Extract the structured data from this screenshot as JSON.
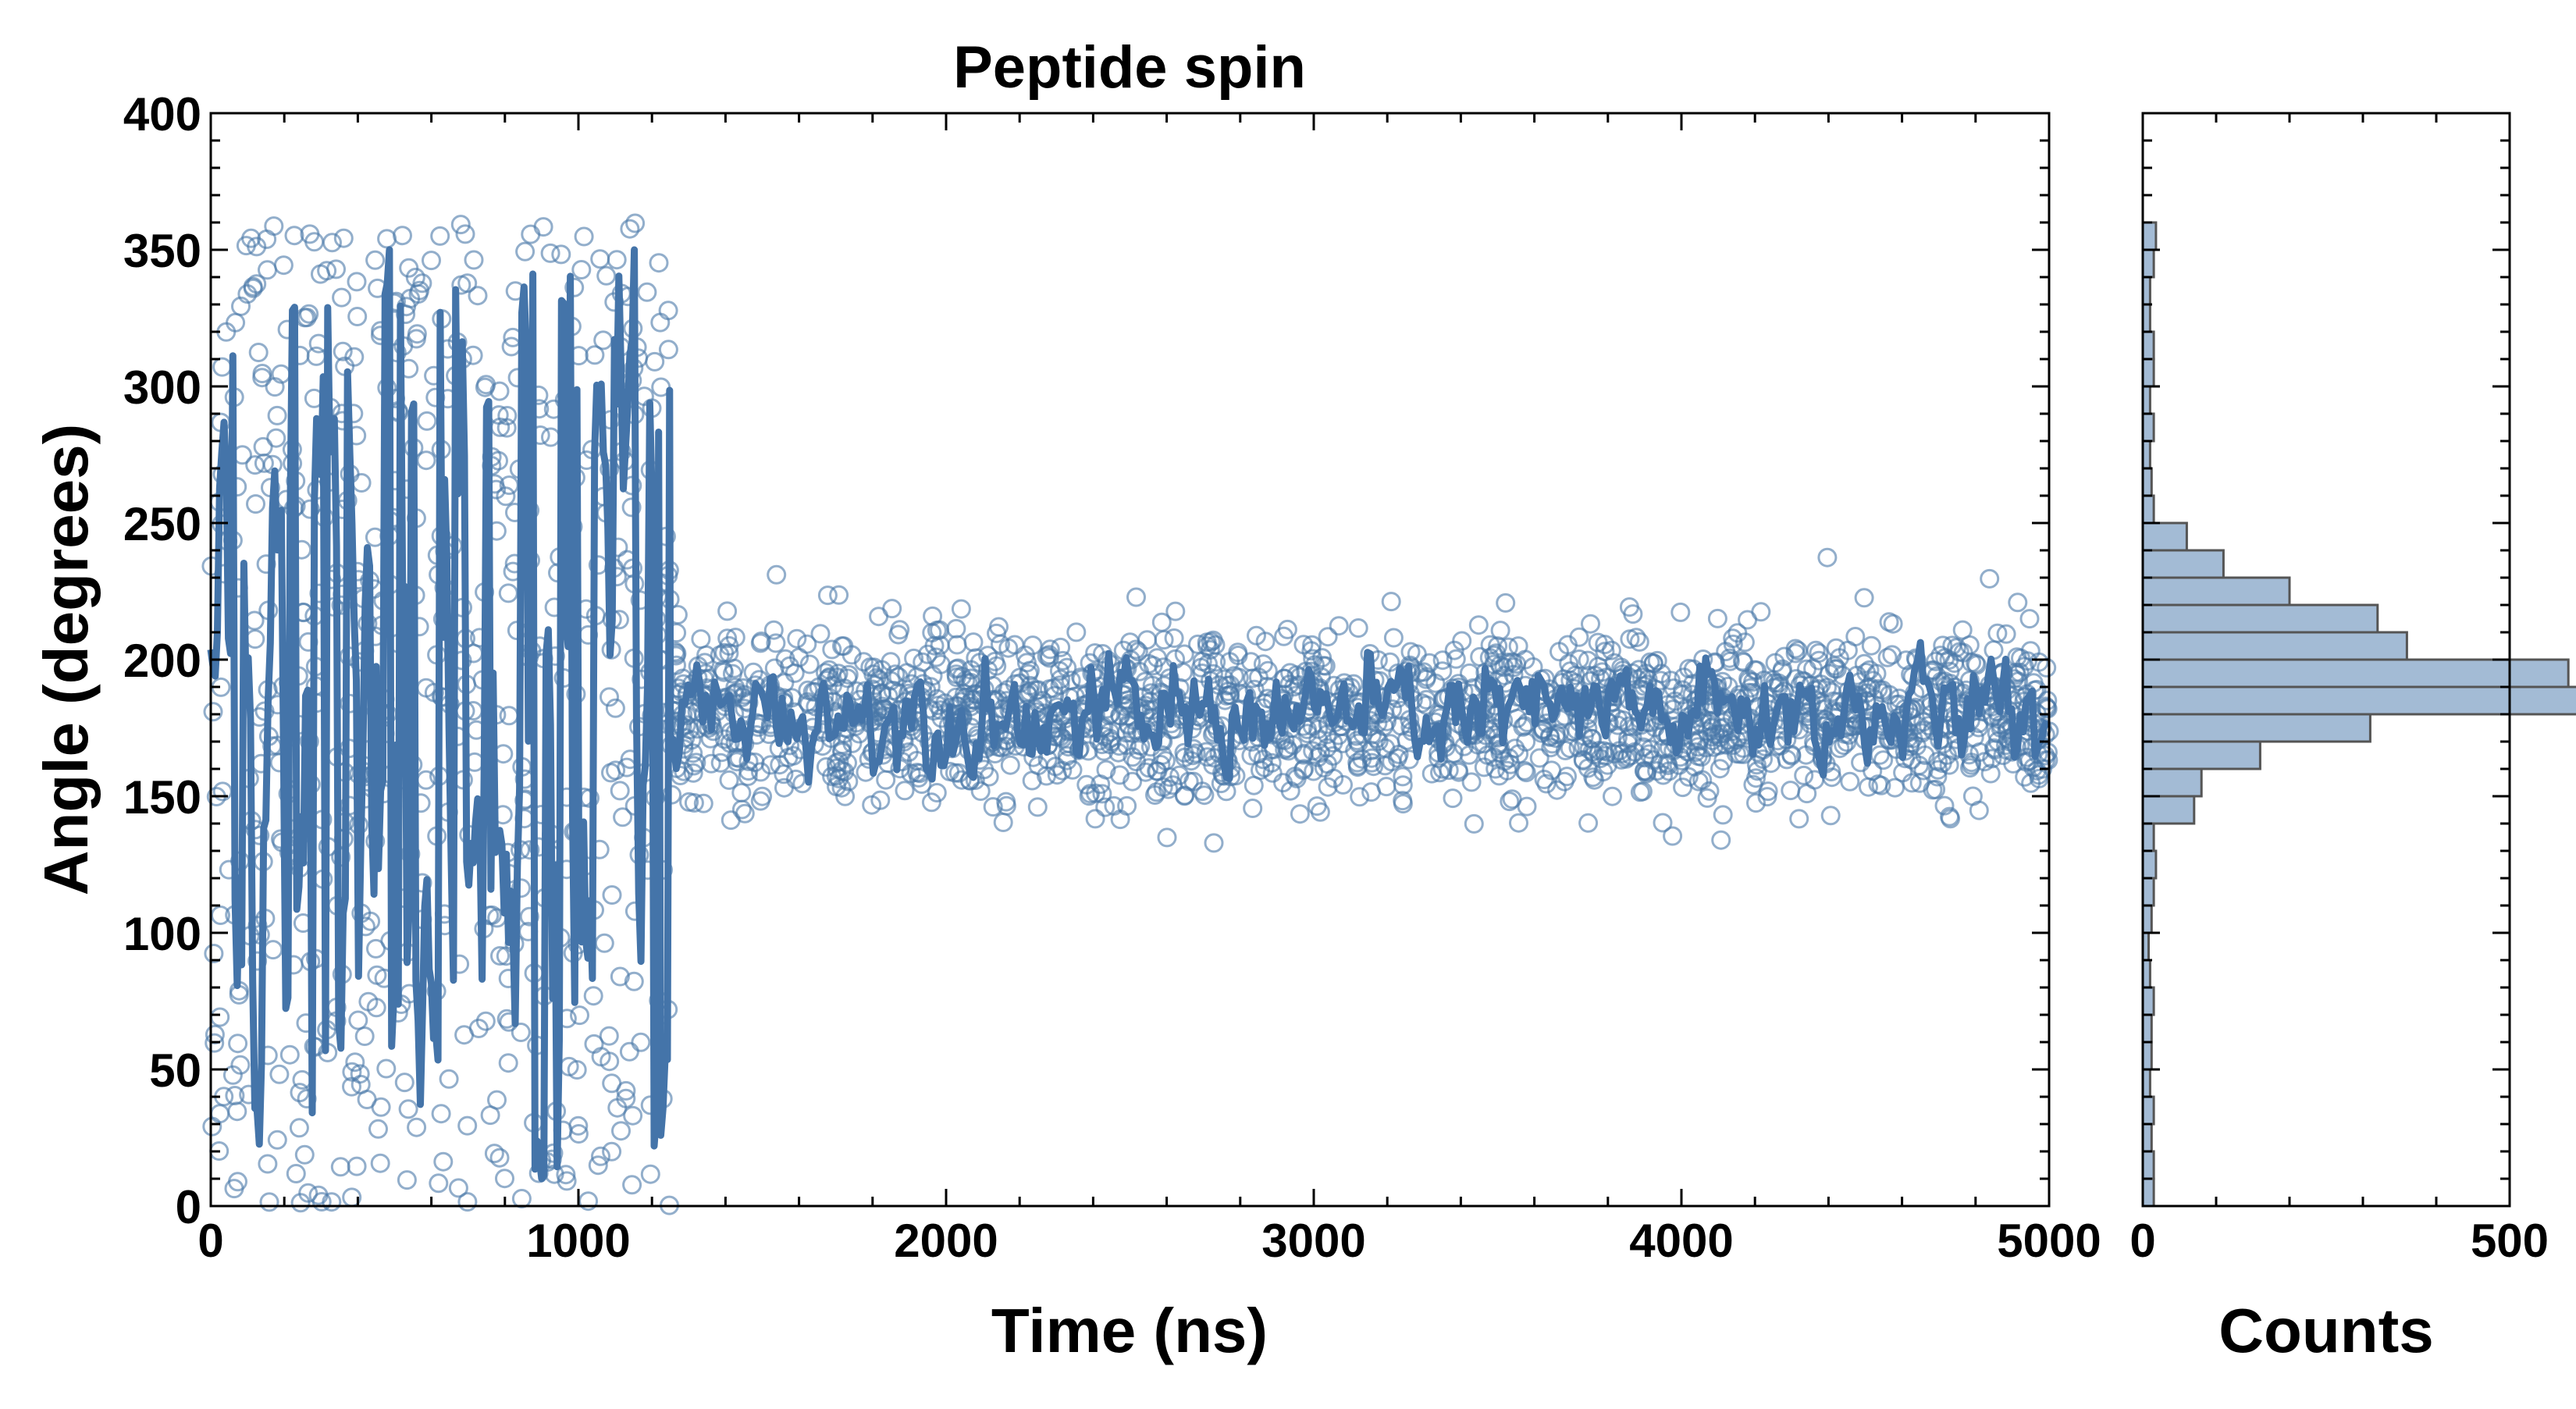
{
  "chart_data": [
    {
      "type": "scatter",
      "title": "Peptide spin",
      "xlabel": "Time (ns)",
      "ylabel": "Angle (degrees)",
      "xlim": [
        0,
        5000
      ],
      "ylim": [
        0,
        400
      ],
      "xticks": [
        "0",
        "1000",
        "2000",
        "3000",
        "4000",
        "5000"
      ],
      "yticks": [
        "0",
        "50",
        "100",
        "150",
        "200",
        "250",
        "300",
        "350",
        "400"
      ],
      "grid": false,
      "legend": "none",
      "colors": {
        "points": "#4a78a8",
        "line": "#4474a9"
      },
      "series": [
        {
          "kind": "raw-points",
          "description_note": "",
          "phase1": {
            "x_range": [
              0,
              1250
            ],
            "y_range": [
              0,
              360
            ],
            "distribution": "uniform"
          },
          "phase2": {
            "x_range": [
              1250,
              5000
            ],
            "y_center": 180,
            "y_spread": 15,
            "y_min": 130,
            "y_max": 245
          }
        },
        {
          "kind": "smoothed-line",
          "phase1": {
            "x_range": [
              0,
              1250
            ],
            "y_range": [
              10,
              350
            ]
          },
          "phase2": {
            "x_range": [
              1250,
              5000
            ],
            "y_center": 180,
            "y_spread": 8
          }
        }
      ]
    },
    {
      "type": "bar",
      "orientation": "horizontal",
      "xlabel": "Counts",
      "xlim": [
        0,
        500
      ],
      "ylim": [
        0,
        400
      ],
      "xticks": [
        "0",
        "500"
      ],
      "colors": {
        "fill": "#a3bbd5",
        "edge": "#555555"
      },
      "bin_width": 10,
      "bins_start": [
        0,
        10,
        20,
        30,
        40,
        50,
        60,
        70,
        80,
        90,
        100,
        110,
        120,
        130,
        140,
        150,
        160,
        170,
        180,
        190,
        200,
        210,
        220,
        230,
        240,
        250,
        260,
        270,
        280,
        290,
        300,
        310,
        320,
        330,
        340,
        350
      ],
      "counts": [
        15,
        15,
        12,
        15,
        10,
        12,
        12,
        15,
        10,
        8,
        12,
        15,
        18,
        15,
        70,
        80,
        160,
        310,
        600,
        580,
        360,
        320,
        200,
        110,
        60,
        15,
        12,
        10,
        15,
        10,
        15,
        15,
        10,
        10,
        15,
        18
      ]
    }
  ]
}
